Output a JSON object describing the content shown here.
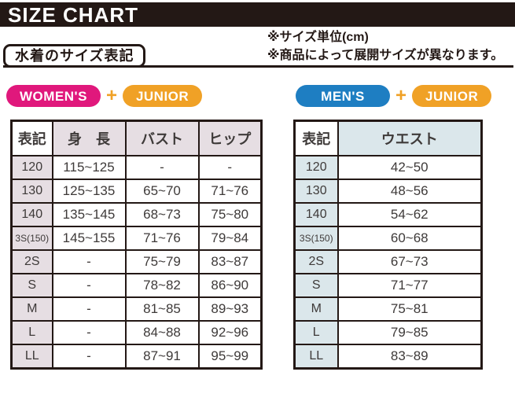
{
  "title": "SIZE CHART",
  "subheader": {
    "label": "水着のサイズ表記",
    "notes": [
      "※サイズ単位(cm)",
      "※商品によって展開サイズが異なります。"
    ]
  },
  "womens_section": {
    "badge1": "WOMEN'S",
    "plus": "+",
    "badge2": "JUNIOR",
    "table": {
      "headers": [
        "表記",
        "身　長",
        "バスト",
        "ヒップ"
      ],
      "rows": [
        [
          "120",
          "115~125",
          "-",
          "-"
        ],
        [
          "130",
          "125~135",
          "65~70",
          "71~76"
        ],
        [
          "140",
          "135~145",
          "68~73",
          "75~80"
        ],
        [
          "3S(150)",
          "145~155",
          "71~76",
          "79~84"
        ],
        [
          "2S",
          "-",
          "75~79",
          "83~87"
        ],
        [
          "S",
          "-",
          "78~82",
          "86~90"
        ],
        [
          "M",
          "-",
          "81~85",
          "89~93"
        ],
        [
          "L",
          "-",
          "84~88",
          "92~96"
        ],
        [
          "LL",
          "-",
          "87~91",
          "95~99"
        ]
      ]
    }
  },
  "mens_section": {
    "badge1": "MEN'S",
    "plus": "+",
    "badge2": "JUNIOR",
    "table": {
      "headers": [
        "表記",
        "ウエスト"
      ],
      "rows": [
        [
          "120",
          "42~50"
        ],
        [
          "130",
          "48~56"
        ],
        [
          "140",
          "54~62"
        ],
        [
          "3S(150)",
          "60~68"
        ],
        [
          "2S",
          "67~73"
        ],
        [
          "S",
          "71~77"
        ],
        [
          "M",
          "75~81"
        ],
        [
          "L",
          "79~85"
        ],
        [
          "LL",
          "83~89"
        ]
      ]
    }
  },
  "colors": {
    "header_bar_black": "#231815",
    "womens_pink": "#E0187C",
    "mens_blue": "#1E7EC2",
    "junior_orange": "#F0A126",
    "womens_row_tint": "#E6DEE3",
    "mens_row_tint": "#DBE7EB",
    "table_text": "#3E3A39"
  }
}
